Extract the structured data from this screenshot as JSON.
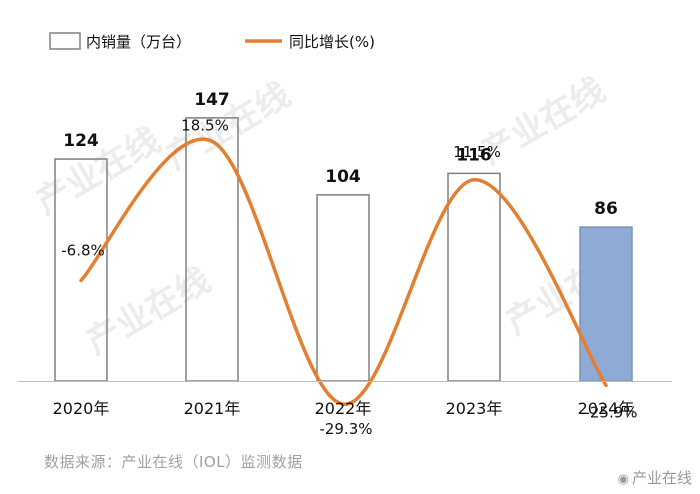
{
  "chart_data": {
    "type": "bar",
    "categories": [
      "2020年",
      "2021年",
      "2022年",
      "2023年",
      "2024年"
    ],
    "series": [
      {
        "name": "内销量（万台）",
        "values": [
          124,
          147,
          104,
          116,
          86
        ]
      },
      {
        "name": "同比增长(%)",
        "values": [
          -6.8,
          18.5,
          -29.3,
          11.5,
          -25.9
        ]
      }
    ],
    "bar_labels": [
      "124",
      "147",
      "104",
      "116",
      "86"
    ],
    "line_labels": [
      "-6.8%",
      "18.5%",
      "-29.3%",
      "11.5%",
      "-25.9%"
    ],
    "legend_position": "top-left",
    "grid": false,
    "colors": {
      "bar_border": "#808080",
      "bar_highlight": "#8faad4",
      "line": "#e37f30"
    }
  },
  "watermark": "产业在线",
  "source_text": "数据来源：产业在线（IOL）监测数据",
  "signature_text": "产业在线"
}
